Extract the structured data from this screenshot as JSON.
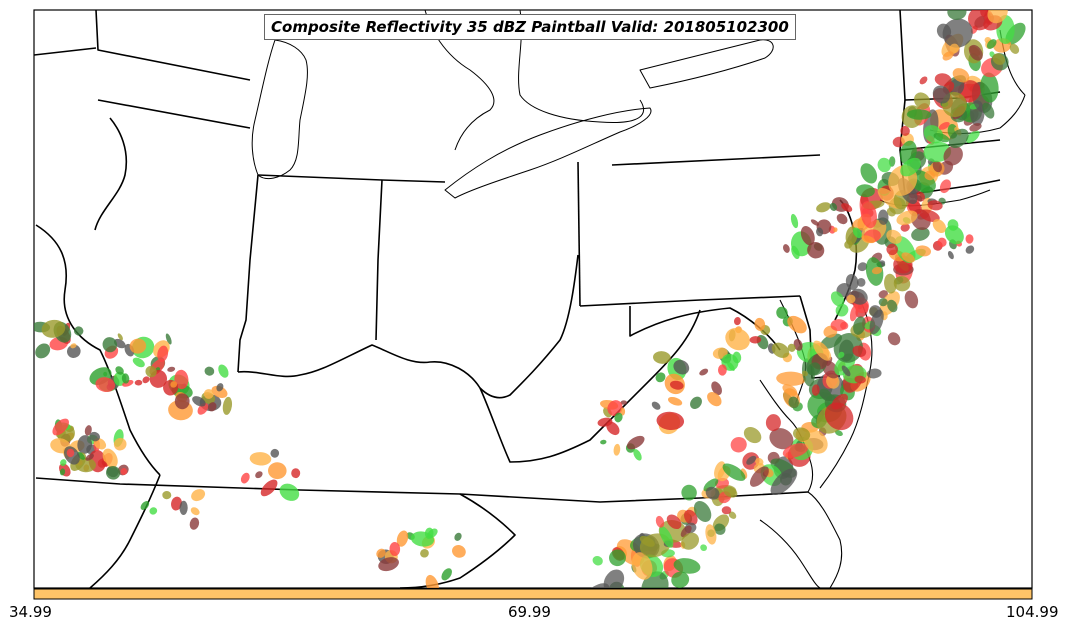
{
  "map": {
    "title": "Composite Reflectivity 35 dBZ Paintball Valid: 201805102300",
    "colorbar": {
      "color": "#fec468",
      "tick_labels": [
        "34.99",
        "69.99",
        "104.99"
      ]
    },
    "paint_colors": [
      "#d62728",
      "#ff4444",
      "#ff9933",
      "#ffb347",
      "#2ca02c",
      "#44dd44",
      "#555555",
      "#8b3a3a",
      "#9a9a2a",
      "#3a7a3a"
    ]
  }
}
